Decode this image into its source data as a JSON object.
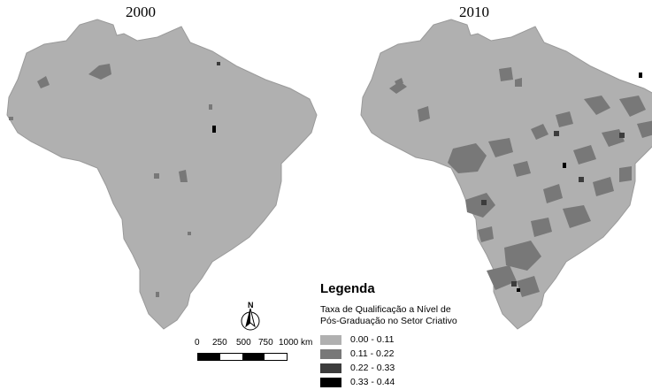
{
  "maps": [
    {
      "title": "2000"
    },
    {
      "title": "2010"
    }
  ],
  "legend": {
    "heading": "Legenda",
    "description_line1": "Taxa de Qualificação a Nível de",
    "description_line2": "Pós-Graduação no Setor Criativo",
    "classes": [
      {
        "label": "0.00 - 0.11",
        "color": "#b0b0b0"
      },
      {
        "label": "0.11 - 0.22",
        "color": "#787878"
      },
      {
        "label": "0.22 - 0.33",
        "color": "#3c3c3c"
      },
      {
        "label": "0.33 - 0.44",
        "color": "#000000"
      }
    ]
  },
  "scale_bar": {
    "ticks": [
      "0",
      "250",
      "500",
      "750",
      "1000 km"
    ]
  },
  "north_arrow": {
    "label": "N",
    "icon": "north-arrow-icon"
  }
}
